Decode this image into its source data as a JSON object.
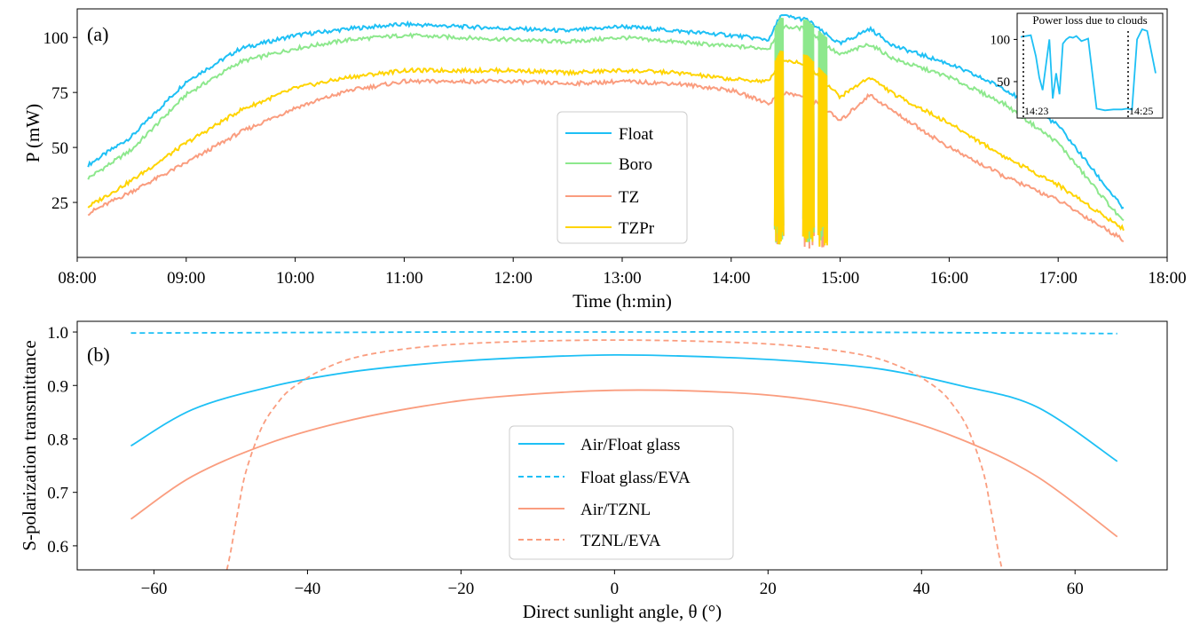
{
  "chart_data": [
    {
      "type": "line",
      "panel_label": "(a)",
      "xlabel": "Time (h:min)",
      "ylabel": "P (mW)",
      "xlim": [
        8.0,
        18.0
      ],
      "ylim": [
        0,
        113
      ],
      "x_ticks": [
        "08:00",
        "09:00",
        "10:00",
        "11:00",
        "12:00",
        "13:00",
        "14:00",
        "15:00",
        "16:00",
        "17:00",
        "18:00"
      ],
      "x_tick_values": [
        8,
        9,
        10,
        11,
        12,
        13,
        14,
        15,
        16,
        17,
        18
      ],
      "y_ticks": [
        25,
        50,
        75,
        100
      ],
      "grid": false,
      "legend_position": "center",
      "x_unit": "hours of day",
      "series": [
        {
          "name": "Float",
          "color": "#1ec0f5",
          "x": [
            8.1,
            8.5,
            9.0,
            9.5,
            10.0,
            10.5,
            11.0,
            11.5,
            12.0,
            12.5,
            13.0,
            13.5,
            14.0,
            14.35,
            14.45,
            14.7,
            14.85,
            15.0,
            15.27,
            15.5,
            16.0,
            16.5,
            17.0,
            17.6
          ],
          "y": [
            42,
            55,
            80,
            95,
            101,
            104,
            106,
            105,
            104,
            103,
            105,
            103,
            101,
            99,
            110,
            108,
            102,
            97,
            104,
            96,
            88,
            77,
            60,
            22
          ]
        },
        {
          "name": "Boro",
          "color": "#8de88d",
          "x": [
            8.1,
            8.5,
            9.0,
            9.5,
            10.0,
            10.5,
            11.0,
            11.5,
            12.0,
            12.5,
            13.0,
            13.5,
            14.0,
            14.35,
            14.45,
            14.7,
            14.85,
            15.0,
            15.27,
            15.5,
            16.0,
            16.5,
            17.0,
            17.6
          ],
          "y": [
            36,
            49,
            74,
            89,
            95,
            99,
            101,
            100,
            99,
            98,
            100,
            98,
            96,
            95,
            105,
            104,
            97,
            92,
            97,
            90,
            82,
            70,
            52,
            16
          ]
        },
        {
          "name": "TZ",
          "color": "#fa9d7f",
          "x": [
            8.1,
            8.5,
            9.0,
            9.5,
            10.0,
            10.5,
            11.0,
            11.5,
            12.0,
            12.5,
            13.0,
            13.5,
            14.0,
            14.35,
            14.45,
            14.7,
            14.85,
            15.0,
            15.27,
            15.5,
            16.0,
            16.5,
            17.0,
            17.6
          ],
          "y": [
            20,
            30,
            43,
            57,
            68,
            76,
            80,
            80,
            80,
            79,
            80,
            79,
            76,
            70,
            75,
            73,
            68,
            62,
            74,
            66,
            50,
            37,
            26,
            8
          ]
        },
        {
          "name": "TZPr",
          "color": "#ffd400",
          "x": [
            8.1,
            8.5,
            9.0,
            9.5,
            10.0,
            10.5,
            11.0,
            11.5,
            12.0,
            12.5,
            13.0,
            13.5,
            14.0,
            14.35,
            14.45,
            14.7,
            14.85,
            15.0,
            15.27,
            15.5,
            16.0,
            16.5,
            17.0,
            17.6
          ],
          "y": [
            23,
            35,
            52,
            67,
            77,
            82,
            85,
            85,
            85,
            84,
            85,
            84,
            81,
            80,
            90,
            88,
            80,
            73,
            82,
            74,
            61,
            46,
            33,
            13
          ]
        }
      ],
      "cloud_dips": [
        {
          "x_start": 14.4,
          "x_end": 14.48
        },
        {
          "x_start": 14.66,
          "x_end": 14.76
        },
        {
          "x_start": 14.8,
          "x_end": 14.88
        }
      ],
      "inset": {
        "title": "Power loss due to clouds",
        "series_color": "#1ec0f5",
        "y_ticks": [
          50,
          100
        ],
        "ylim": [
          10,
          112
        ],
        "markers": [
          "14:23",
          "14:25"
        ],
        "x": [
          0,
          0.3,
          0.6,
          0.9,
          1.1,
          1.3,
          1.5,
          1.7,
          1.9,
          2.1,
          2.3,
          2.5,
          2.7,
          2.9,
          3.1,
          3.3,
          3.6,
          4.0,
          4.5,
          5.0,
          5.5,
          6.0,
          6.3,
          6.6,
          6.9,
          7.2,
          7.5,
          7.8,
          8.0
        ],
        "y": [
          103,
          104,
          105,
          80,
          55,
          40,
          70,
          100,
          30,
          60,
          35,
          95,
          100,
          103,
          102,
          104,
          98,
          101,
          18,
          16,
          17,
          17,
          18,
          17,
          100,
          112,
          110,
          80,
          60
        ]
      }
    },
    {
      "type": "line",
      "panel_label": "(b)",
      "xlabel": "Direct sunlight angle, θ (°)",
      "ylabel": "S-polarization transmittance",
      "xlim": [
        -70,
        72
      ],
      "ylim": [
        0.555,
        1.02
      ],
      "x_ticks": [
        "−60",
        "−40",
        "−20",
        "0",
        "20",
        "40",
        "60"
      ],
      "x_tick_values": [
        -60,
        -40,
        -20,
        0,
        20,
        40,
        60
      ],
      "y_ticks": [
        "0.6",
        "0.7",
        "0.8",
        "0.9",
        "1.0"
      ],
      "y_tick_values": [
        0.6,
        0.7,
        0.8,
        0.9,
        1.0
      ],
      "grid": false,
      "legend_position": "lower center",
      "series": [
        {
          "name": "Air/Float glass",
          "color": "#1ec0f5",
          "dash": "solid",
          "x": [
            -63,
            -55,
            -45,
            -35,
            -25,
            -15,
            0,
            15,
            25,
            35,
            45,
            55,
            65.5
          ],
          "y": [
            0.787,
            0.855,
            0.897,
            0.924,
            0.94,
            0.95,
            0.957,
            0.952,
            0.944,
            0.93,
            0.9,
            0.86,
            0.758
          ]
        },
        {
          "name": "Float glass/EVA",
          "color": "#1ec0f5",
          "dash": "dashed",
          "x": [
            -63,
            -40,
            -20,
            0,
            20,
            40,
            65.5
          ],
          "y": [
            0.998,
            0.999,
            1.0,
            1.0,
            1.0,
            0.999,
            0.997
          ]
        },
        {
          "name": "Air/TZNL",
          "color": "#fa9d7f",
          "dash": "solid",
          "x": [
            -63,
            -55,
            -45,
            -35,
            -25,
            -15,
            0,
            15,
            25,
            35,
            45,
            55,
            65.5
          ],
          "y": [
            0.65,
            0.73,
            0.792,
            0.833,
            0.861,
            0.879,
            0.891,
            0.887,
            0.874,
            0.847,
            0.8,
            0.73,
            0.617
          ]
        },
        {
          "name": "TZNL/EVA",
          "color": "#fa9d7f",
          "dash": "dashed",
          "x": [
            -50.5,
            -50,
            -49,
            -48,
            -46,
            -44,
            -42,
            -38,
            -33,
            -25,
            -15,
            0,
            15,
            25,
            33,
            38,
            42,
            44,
            46,
            48,
            49,
            50,
            50.5
          ],
          "y": [
            0.555,
            0.59,
            0.67,
            0.74,
            0.82,
            0.865,
            0.895,
            0.93,
            0.955,
            0.972,
            0.981,
            0.985,
            0.981,
            0.972,
            0.955,
            0.93,
            0.895,
            0.865,
            0.82,
            0.74,
            0.67,
            0.59,
            0.555
          ]
        }
      ]
    }
  ]
}
